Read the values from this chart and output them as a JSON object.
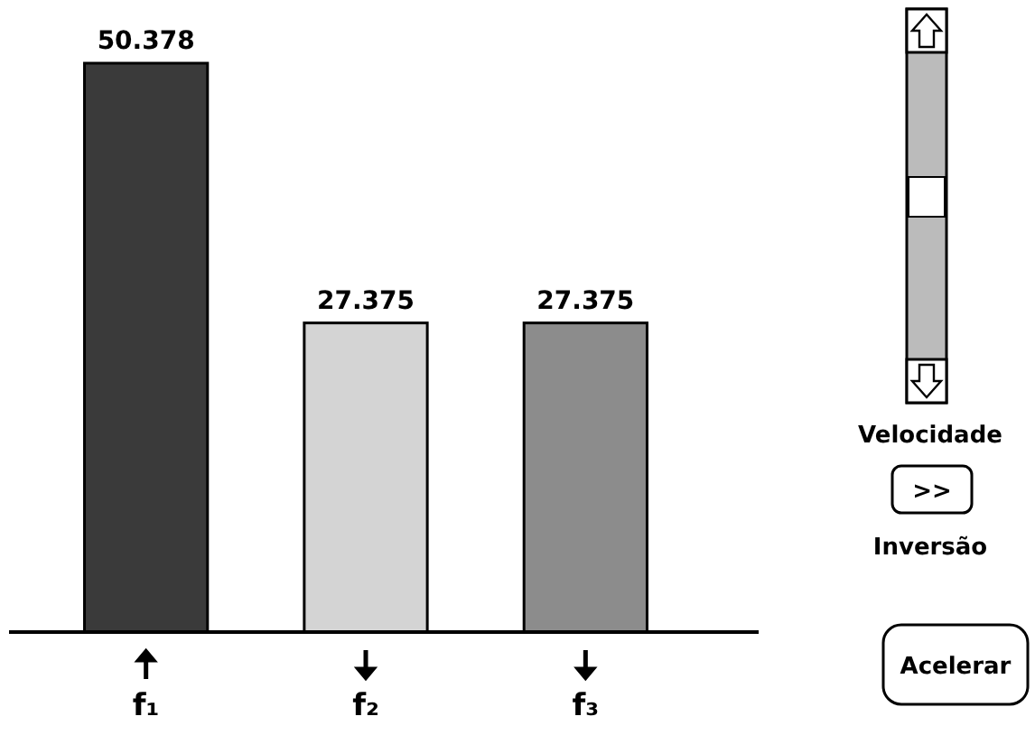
{
  "chart_data": {
    "type": "bar",
    "categories": [
      "f₁",
      "f₂",
      "f₃"
    ],
    "values": [
      50.378,
      27.375,
      27.375
    ],
    "colors": [
      "#3a3a3a",
      "#d4d4d4",
      "#8c8c8c"
    ],
    "data_labels": true,
    "tick_labels": "x",
    "annotations": [
      "Velocidade",
      ">>",
      "Inversão",
      "Acelerar"
    ]
  }
}
